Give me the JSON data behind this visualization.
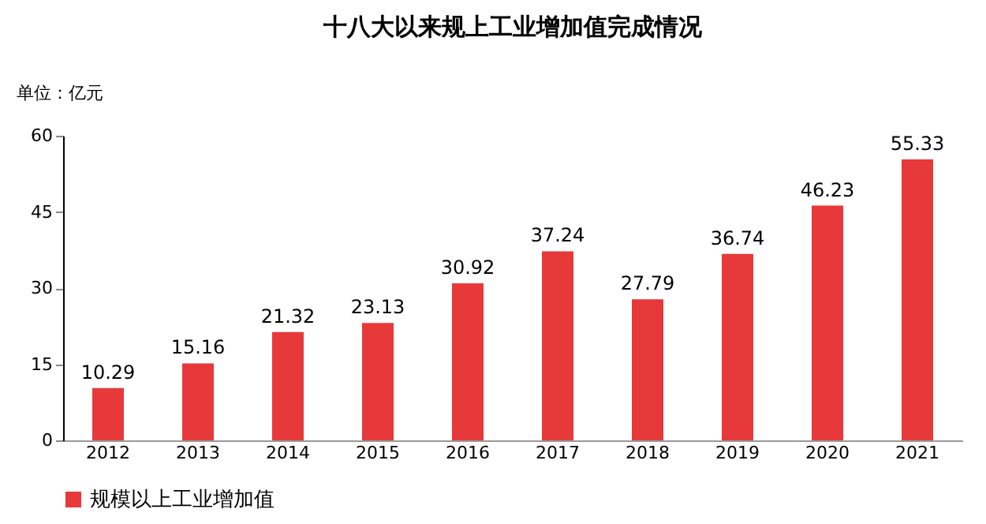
{
  "chart_data": {
    "type": "bar",
    "title": "十八大以来规上工业增加值完成情况",
    "ylabel": "单位：亿元",
    "categories": [
      "2012",
      "2013",
      "2014",
      "2015",
      "2016",
      "2017",
      "2018",
      "2019",
      "2020",
      "2021"
    ],
    "series": [
      {
        "name": "规模以上工业增加值",
        "color": "#e8393a",
        "values": [
          10.29,
          15.16,
          21.32,
          23.13,
          30.92,
          37.24,
          27.79,
          36.74,
          46.23,
          55.33
        ]
      }
    ],
    "ylim": [
      0,
      60
    ],
    "yticks": [
      0,
      15,
      30,
      45,
      60
    ],
    "grid": false,
    "legend": "bottom",
    "data_labels": true
  }
}
